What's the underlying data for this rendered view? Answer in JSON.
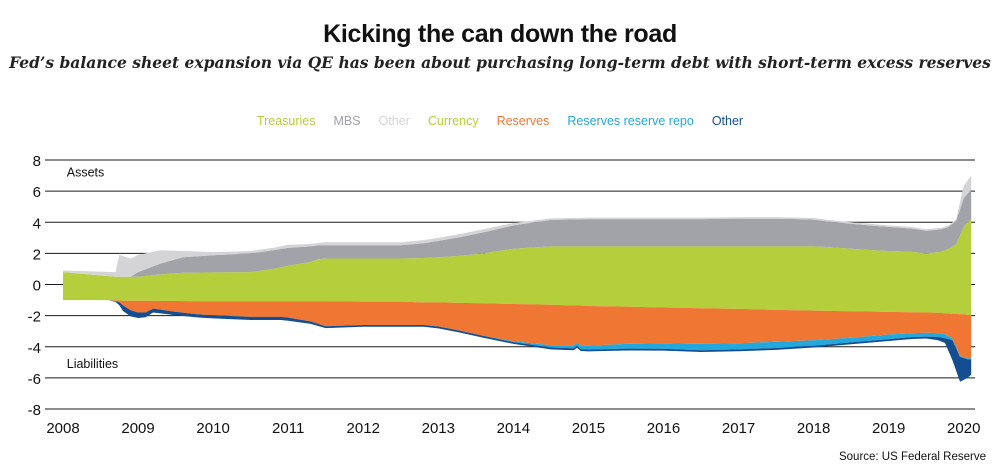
{
  "title": "Kicking the can down the road",
  "subtitle": "Fed’s balance sheet expansion via QE has been about purchasing long-term debt with short-term excess reserves",
  "source": "Source: US Federal Reserve",
  "chart_data": {
    "type": "area",
    "x_ticks": [
      2008,
      2009,
      2010,
      2011,
      2012,
      2013,
      2014,
      2015,
      2016,
      2017,
      2018,
      2019,
      2020
    ],
    "xlim": [
      2008,
      2020.15
    ],
    "ylim": [
      -8,
      8
    ],
    "y_ticks": [
      8,
      6,
      4,
      2,
      0,
      -2,
      -4,
      -6,
      -8
    ],
    "annotations": [
      {
        "text": "Assets",
        "x": 2008.05,
        "y": 7.2
      },
      {
        "text": "Liabilities",
        "x": 2008.05,
        "y": -5.1
      }
    ],
    "legend": [
      {
        "name": "Treasuries",
        "color": "#b5cf3c"
      },
      {
        "name": "MBS",
        "color": "#a2a3a8"
      },
      {
        "name": "Other",
        "color": "#d4d4d6"
      },
      {
        "name": "Currency",
        "color": "#b5cf3c"
      },
      {
        "name": "Reserves",
        "color": "#ef7733"
      },
      {
        "name": "Reserves reserve repo",
        "color": "#22a8dc"
      },
      {
        "name": "Other",
        "color": "#144e91"
      }
    ],
    "assets_x": [
      2008.0,
      2008.7,
      2008.75,
      2008.9,
      2009.0,
      2009.3,
      2009.6,
      2010.0,
      2010.5,
      2010.8,
      2011.0,
      2011.3,
      2011.4,
      2011.5,
      2012.0,
      2012.5,
      2012.8,
      2013.0,
      2013.3,
      2013.6,
      2014.0,
      2014.5,
      2015.0,
      2015.5,
      2016.0,
      2016.5,
      2017.0,
      2017.5,
      2017.8,
      2018.0,
      2018.2,
      2018.5,
      2018.8,
      2019.0,
      2019.3,
      2019.5,
      2019.7,
      2019.8,
      2019.9,
      2020.0,
      2020.1
    ],
    "treasuries": [
      0.8,
      0.5,
      0.5,
      0.5,
      0.5,
      0.65,
      0.75,
      0.78,
      0.8,
      1.0,
      1.2,
      1.45,
      1.62,
      1.67,
      1.67,
      1.67,
      1.7,
      1.75,
      1.85,
      2.0,
      2.3,
      2.45,
      2.45,
      2.45,
      2.45,
      2.45,
      2.45,
      2.45,
      2.45,
      2.45,
      2.4,
      2.3,
      2.2,
      2.15,
      2.1,
      2.0,
      2.1,
      2.3,
      2.6,
      3.7,
      4.2
    ],
    "mbs": [
      0.0,
      0.0,
      0.0,
      0.0,
      0.3,
      0.7,
      1.0,
      1.1,
      1.2,
      1.2,
      1.15,
      1.0,
      0.9,
      0.85,
      0.85,
      0.85,
      0.95,
      1.05,
      1.2,
      1.35,
      1.5,
      1.7,
      1.75,
      1.75,
      1.75,
      1.75,
      1.78,
      1.78,
      1.75,
      1.72,
      1.65,
      1.6,
      1.58,
      1.55,
      1.5,
      1.45,
      1.45,
      1.4,
      1.5,
      1.85,
      1.9
    ],
    "assets_other": [
      0.1,
      0.3,
      1.4,
      1.15,
      1.1,
      0.85,
      0.4,
      0.2,
      0.15,
      0.15,
      0.2,
      0.15,
      0.15,
      0.2,
      0.2,
      0.2,
      0.2,
      0.2,
      0.2,
      0.2,
      0.15,
      0.1,
      0.1,
      0.1,
      0.1,
      0.1,
      0.1,
      0.1,
      0.1,
      0.1,
      0.1,
      0.1,
      0.1,
      0.1,
      0.1,
      0.1,
      0.1,
      0.1,
      0.1,
      0.8,
      0.9
    ],
    "liab_x": [
      2008.0,
      2008.6,
      2008.7,
      2008.75,
      2008.8,
      2008.9,
      2009.0,
      2009.1,
      2009.2,
      2009.3,
      2009.5,
      2009.8,
      2010.0,
      2010.5,
      2010.9,
      2011.0,
      2011.3,
      2011.5,
      2012.0,
      2012.5,
      2012.8,
      2013.0,
      2013.3,
      2013.6,
      2014.0,
      2014.5,
      2014.8,
      2014.85,
      2014.9,
      2015.0,
      2015.5,
      2016.0,
      2016.5,
      2017.0,
      2017.5,
      2018.0,
      2018.5,
      2019.0,
      2019.3,
      2019.5,
      2019.65,
      2019.75,
      2019.85,
      2019.95,
      2020.05,
      2020.1
    ],
    "currency": [
      -1.0,
      -1.0,
      -1.02,
      -1.03,
      -1.05,
      -1.05,
      -1.05,
      -1.05,
      -1.05,
      -1.06,
      -1.06,
      -1.07,
      -1.08,
      -1.08,
      -1.08,
      -1.08,
      -1.08,
      -1.08,
      -1.1,
      -1.1,
      -1.15,
      -1.15,
      -1.18,
      -1.2,
      -1.25,
      -1.3,
      -1.35,
      -1.35,
      -1.35,
      -1.38,
      -1.42,
      -1.48,
      -1.52,
      -1.57,
      -1.63,
      -1.68,
      -1.72,
      -1.76,
      -1.78,
      -1.8,
      -1.82,
      -1.85,
      -1.88,
      -1.9,
      -1.95,
      -2.0
    ],
    "reserves": [
      0.0,
      0.0,
      -0.05,
      -0.1,
      -0.3,
      -0.6,
      -0.75,
      -0.75,
      -0.5,
      -0.55,
      -0.7,
      -0.85,
      -0.9,
      -1.0,
      -1.0,
      -1.05,
      -1.3,
      -1.6,
      -1.5,
      -1.5,
      -1.45,
      -1.55,
      -1.8,
      -2.1,
      -2.4,
      -2.6,
      -2.55,
      -2.4,
      -2.6,
      -2.55,
      -2.4,
      -2.3,
      -2.3,
      -2.2,
      -2.05,
      -1.9,
      -1.7,
      -1.45,
      -1.35,
      -1.3,
      -1.3,
      -1.35,
      -1.6,
      -2.7,
      -2.8,
      -2.75
    ],
    "reverse_repo": [
      0.0,
      0.0,
      0.0,
      0.0,
      0.0,
      0.0,
      0.0,
      0.0,
      0.0,
      0.0,
      0.0,
      0.0,
      0.0,
      0.0,
      0.0,
      0.0,
      0.0,
      0.0,
      0.0,
      0.0,
      0.0,
      0.0,
      0.0,
      0.0,
      -0.05,
      -0.15,
      -0.2,
      -0.2,
      -0.2,
      -0.25,
      -0.3,
      -0.35,
      -0.4,
      -0.4,
      -0.4,
      -0.35,
      -0.3,
      -0.3,
      -0.25,
      -0.25,
      -0.25,
      -0.25,
      -0.1,
      -0.05,
      -0.05,
      -0.05
    ],
    "liab_other": [
      0.0,
      0.0,
      -0.05,
      -0.2,
      -0.35,
      -0.4,
      -0.35,
      -0.3,
      -0.25,
      -0.25,
      -0.22,
      -0.2,
      -0.2,
      -0.2,
      -0.2,
      -0.2,
      -0.15,
      -0.12,
      -0.12,
      -0.12,
      -0.12,
      -0.12,
      -0.12,
      -0.12,
      -0.12,
      -0.12,
      -0.12,
      -0.12,
      -0.12,
      -0.12,
      -0.12,
      -0.12,
      -0.12,
      -0.12,
      -0.12,
      -0.12,
      -0.12,
      -0.12,
      -0.12,
      -0.12,
      -0.2,
      -0.3,
      -1.3,
      -1.6,
      -1.2,
      -1.0
    ]
  }
}
